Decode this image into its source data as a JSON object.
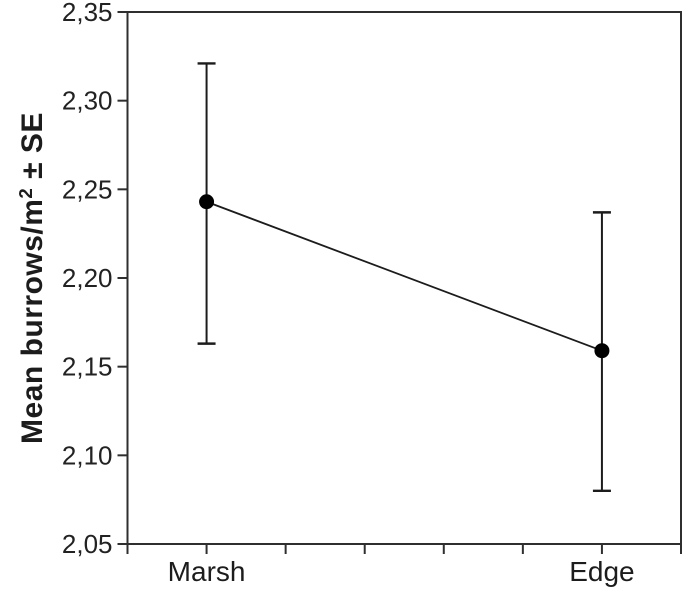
{
  "chart_data": {
    "type": "line",
    "title": "",
    "categories": [
      "Marsh",
      "Edge"
    ],
    "series": [
      {
        "name": "Mean burrows per square metre",
        "values": [
          2.243,
          2.159
        ],
        "error_upper": [
          2.321,
          2.237
        ],
        "error_lower": [
          2.163,
          2.08
        ]
      }
    ],
    "ylabel": "Mean burrows/m2 ± SE",
    "ylabel_prefix": "Mean burrows/m",
    "ylabel_sup": "2",
    "ylabel_suffix": " ± SE",
    "xlabel": "",
    "ylim": [
      2.05,
      2.35
    ],
    "ytick_values": [
      2.35,
      2.3,
      2.25,
      2.2,
      2.15,
      2.1,
      2.05
    ],
    "ytick_labels": [
      "2,35",
      "2,30",
      "2,25",
      "2,20",
      "2,15",
      "2,10",
      "2,05"
    ],
    "decimal_separator": ",",
    "grid": false,
    "legend_position": "none",
    "marker": "filled-circle",
    "x_tick_divisions": 7,
    "category_tick_indices": [
      1,
      6
    ],
    "colors": {
      "background": "#ffffff",
      "axis": "#2f2f2f",
      "line": "#1c1c1c",
      "marker": "#000000",
      "text": "#222222"
    }
  }
}
